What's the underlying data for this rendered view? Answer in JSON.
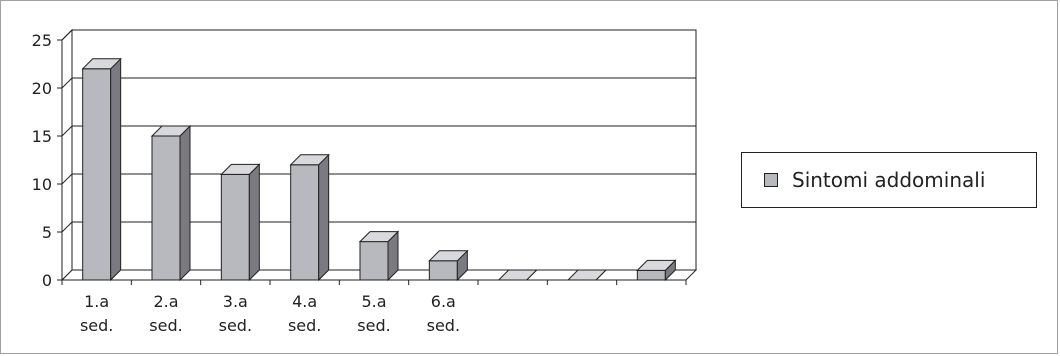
{
  "chart_data": {
    "type": "bar",
    "categories": [
      "1.a sed.",
      "2.a sed.",
      "3.a sed.",
      "4.a sed.",
      "5.a sed.",
      "6.a sed.",
      "",
      "",
      ""
    ],
    "category_lines": [
      [
        "1.a",
        "sed."
      ],
      [
        "2.a",
        "sed."
      ],
      [
        "3.a",
        "sed."
      ],
      [
        "4.a",
        "sed."
      ],
      [
        "5.a",
        "sed."
      ],
      [
        "6.a",
        "sed."
      ],
      [
        "",
        ""
      ],
      [
        "",
        ""
      ],
      [
        "",
        ""
      ]
    ],
    "series": [
      {
        "name": "Sintomi addominali",
        "values": [
          22,
          15,
          11,
          12,
          4,
          2,
          0,
          0,
          1
        ],
        "color": "#b8b8bf"
      }
    ],
    "ylim": [
      0,
      25
    ],
    "yticks": [
      "0",
      "5",
      "10",
      "15",
      "20",
      "25"
    ],
    "grid": true,
    "style": "3d-column",
    "legend_position": "right"
  },
  "legend": {
    "label": "Sintomi addominali"
  }
}
